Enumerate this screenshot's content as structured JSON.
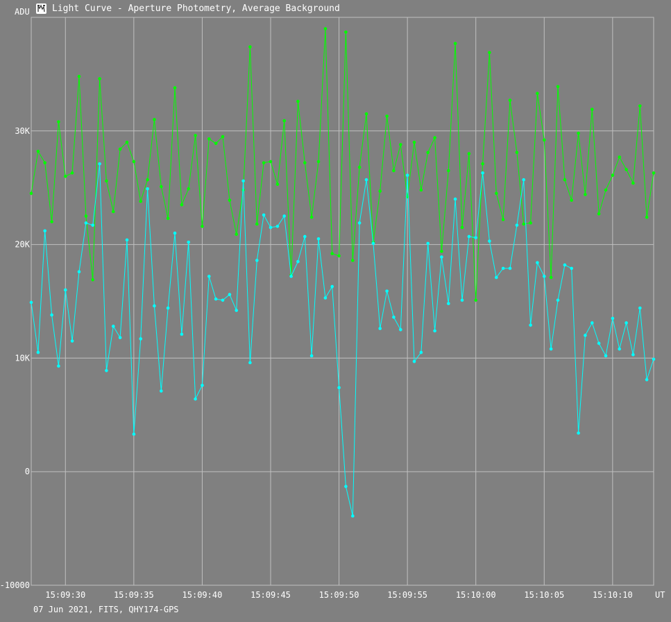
{
  "window": {
    "title": "Light Curve - Aperture Photometry, Average Background",
    "icon": "light-curve-app-icon"
  },
  "footer": {
    "text": "07 Jun 2021, FITS, QHY174-GPS"
  },
  "colors": {
    "background": "#808080",
    "grid": "#c0c0c0",
    "series_green": "#00ff00",
    "series_cyan": "#00ffff",
    "text": "#ffffff"
  },
  "chart_data": {
    "type": "line",
    "ylabel": "ADU",
    "xlabel": "UT",
    "ylim": [
      -10000,
      40000
    ],
    "xlim": [
      27.5,
      73.0
    ],
    "grid": true,
    "y_ticks": [
      {
        "value": 30000,
        "label": "30K"
      },
      {
        "value": 20000,
        "label": "20K"
      },
      {
        "value": 10000,
        "label": "10K"
      },
      {
        "value": 0,
        "label": "0"
      },
      {
        "value": -10000,
        "label": "-10000"
      }
    ],
    "x_ticks": [
      {
        "value": 30,
        "label": "15:09:30"
      },
      {
        "value": 35,
        "label": "15:09:35"
      },
      {
        "value": 40,
        "label": "15:09:40"
      },
      {
        "value": 45,
        "label": "15:09:45"
      },
      {
        "value": 50,
        "label": "15:09:50"
      },
      {
        "value": 55,
        "label": "15:09:55"
      },
      {
        "value": 60,
        "label": "15:10:00"
      },
      {
        "value": 65,
        "label": "15:10:05"
      },
      {
        "value": 70,
        "label": "15:10:10"
      }
    ],
    "x_start": 27.5,
    "x_step": 0.5,
    "series": [
      {
        "color": "#00ff00",
        "values": [
          24500,
          28200,
          27200,
          22000,
          30800,
          26000,
          26300,
          34800,
          22500,
          16900,
          34600,
          25600,
          22900,
          28400,
          29000,
          27300,
          23800,
          25700,
          31000,
          25100,
          22300,
          33800,
          23500,
          24900,
          29600,
          21600,
          29300,
          28900,
          29500,
          23900,
          20900,
          24800,
          37400,
          21800,
          27200,
          27300,
          25300,
          30900,
          17300,
          32600,
          27200,
          22400,
          27300,
          39000,
          19200,
          19000,
          38700,
          18600,
          26800,
          31500,
          20200,
          24700,
          31300,
          26500,
          28800,
          24200,
          29000,
          24800,
          28100,
          29400,
          19400,
          26500,
          37700,
          21500,
          28000,
          15100,
          27100,
          36900,
          24500,
          22200,
          32700,
          28100,
          21800,
          21900,
          33300,
          29200,
          17100,
          33900,
          25700,
          23900,
          29800,
          24400,
          31900,
          22700,
          24800,
          26100,
          27700,
          26600,
          25400,
          32200,
          22400,
          26300
        ]
      },
      {
        "color": "#00ffff",
        "values": [
          14900,
          10500,
          21200,
          13800,
          9300,
          16000,
          11500,
          17600,
          21900,
          21700,
          27100,
          8900,
          12800,
          11800,
          20400,
          3300,
          11700,
          24900,
          14600,
          7100,
          14400,
          21000,
          12100,
          20200,
          6400,
          7600,
          17200,
          15200,
          15100,
          15600,
          14200,
          25600,
          9600,
          18600,
          22600,
          21500,
          21600,
          22500,
          17200,
          18500,
          20700,
          10200,
          20500,
          15300,
          16300,
          7400,
          -1300,
          -3900,
          21900,
          25700,
          20100,
          12600,
          15900,
          13600,
          12500,
          26100,
          9700,
          10500,
          20100,
          12400,
          18900,
          14800,
          24000,
          15100,
          20700,
          20600,
          26300,
          20300,
          17100,
          17900,
          17900,
          21700,
          25700,
          12900,
          18400,
          17200,
          10800,
          15100,
          18200,
          17900,
          3400,
          12000,
          13100,
          11300,
          10200,
          13500,
          10800,
          13100,
          10300,
          14400,
          8100,
          9900
        ]
      }
    ]
  }
}
